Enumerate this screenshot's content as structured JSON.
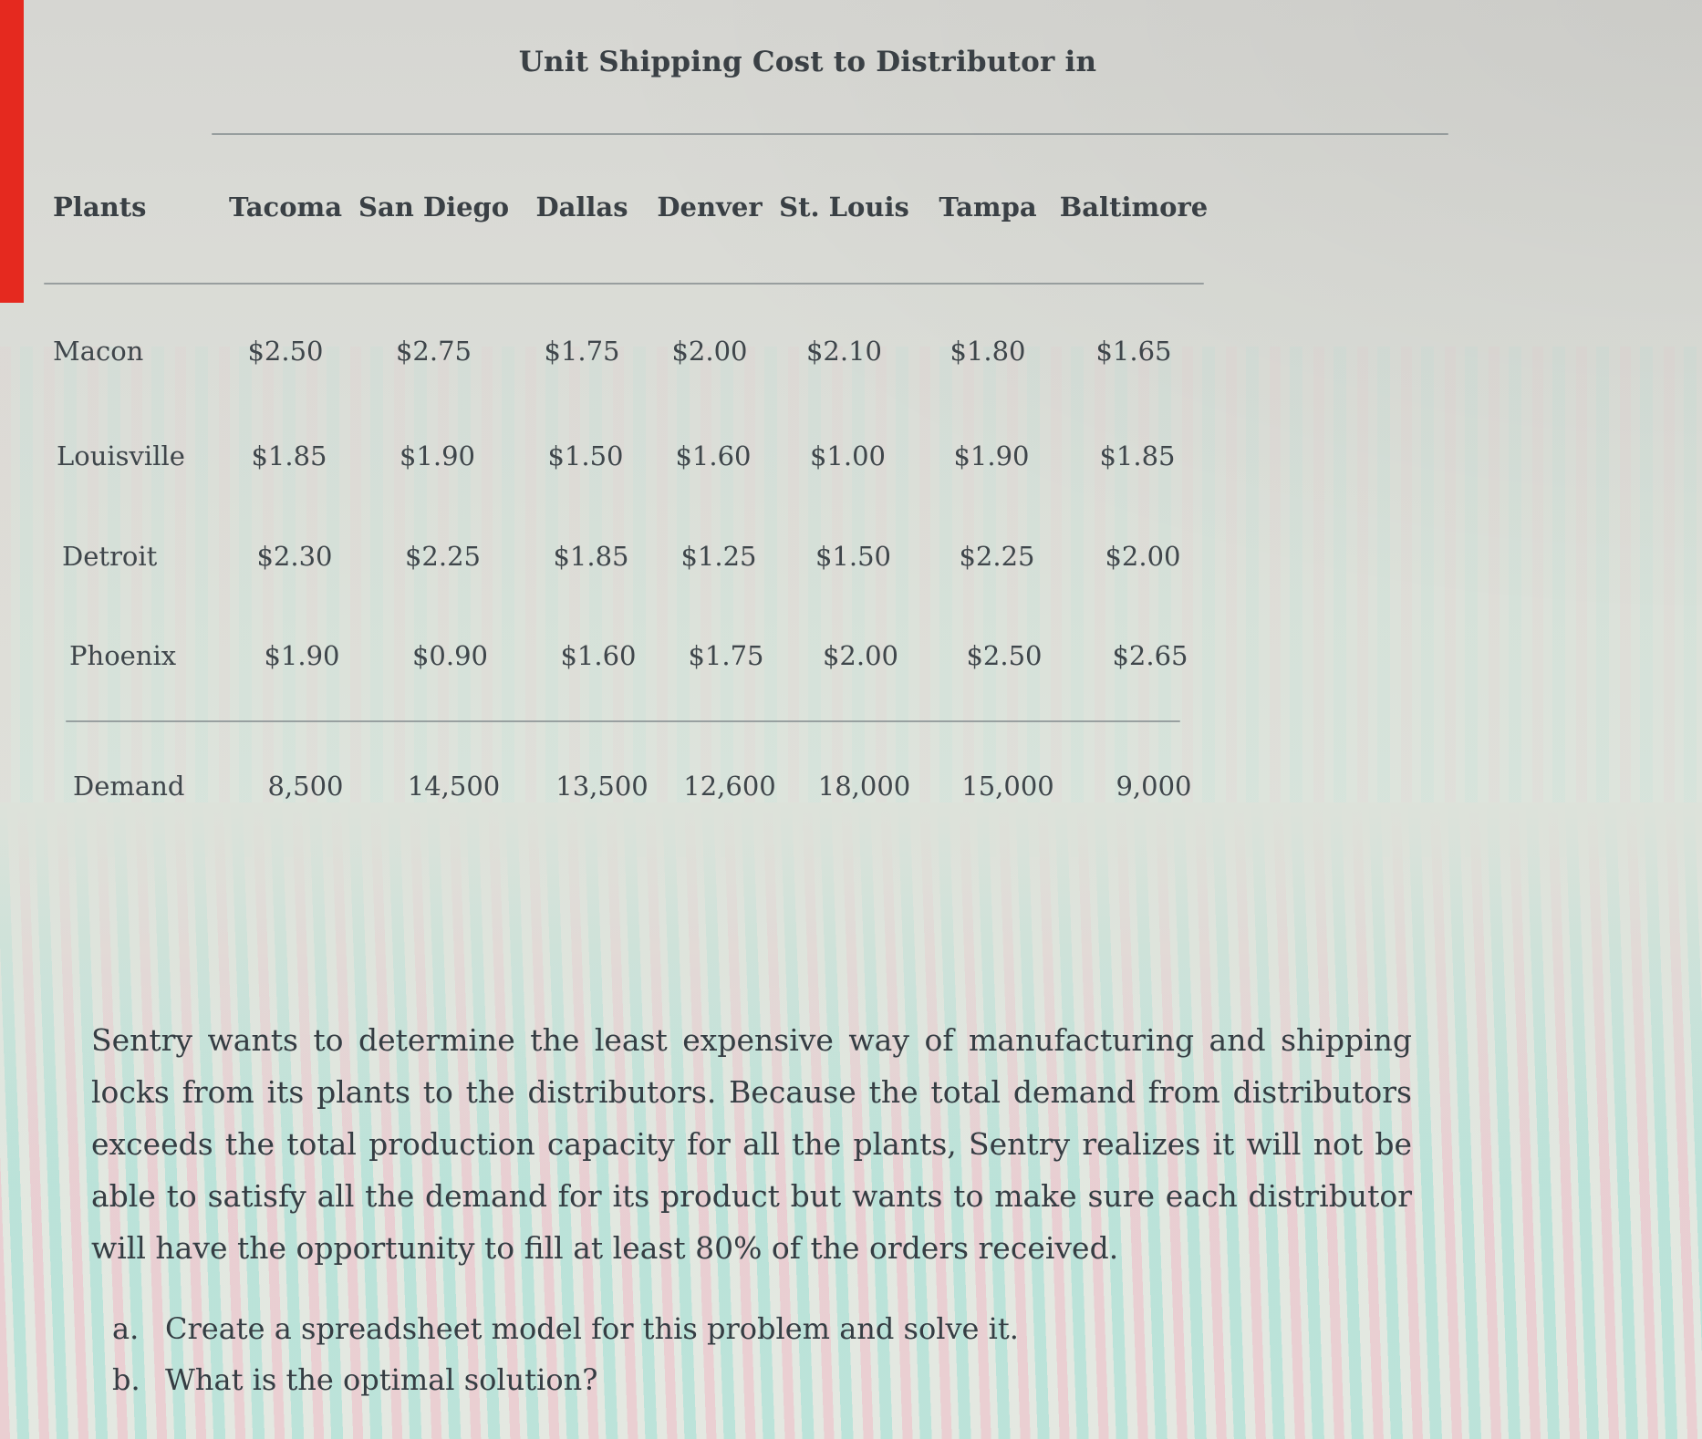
{
  "page": {
    "title": "Unit Shipping Cost to Distributor in"
  },
  "table": {
    "row_header": "Plants",
    "columns": [
      "Tacoma",
      "San Diego",
      "Dallas",
      "Denver",
      "St. Louis",
      "Tampa",
      "Baltimore"
    ],
    "rows": [
      {
        "plant": "Macon",
        "costs": [
          "$2.50",
          "$2.75",
          "$1.75",
          "$2.00",
          "$2.10",
          "$1.80",
          "$1.65"
        ]
      },
      {
        "plant": "Louisville",
        "costs": [
          "$1.85",
          "$1.90",
          "$1.50",
          "$1.60",
          "$1.00",
          "$1.90",
          "$1.85"
        ]
      },
      {
        "plant": "Detroit",
        "costs": [
          "$2.30",
          "$2.25",
          "$1.85",
          "$1.25",
          "$1.50",
          "$2.25",
          "$2.00"
        ]
      },
      {
        "plant": "Phoenix",
        "costs": [
          "$1.90",
          "$0.90",
          "$1.60",
          "$1.75",
          "$2.00",
          "$2.50",
          "$2.65"
        ]
      }
    ],
    "demand_label": "Demand",
    "demand": [
      "8,500",
      "14,500",
      "13,500",
      "12,600",
      "18,000",
      "15,000",
      "9,000"
    ]
  },
  "problem_text": "Sentry wants to determine the least expensive way of manufacturing and shipping locks from its plants to the distributors. Because the total demand from distributors exceeds the total production capacity for all the plants, Sentry realizes it will not be able to satisfy all the demand for its product but wants to make sure each distributor will have the opportunity to fill at least 80% of the orders received.",
  "questions": [
    {
      "label": "a.",
      "text": "Create a spreadsheet model for this problem and solve it."
    },
    {
      "label": "b.",
      "text": "What is the optimal solution?"
    }
  ],
  "colors": {
    "edge_strip_red": "#e5291f",
    "text": "#3f464b",
    "background": "#dce2da"
  }
}
